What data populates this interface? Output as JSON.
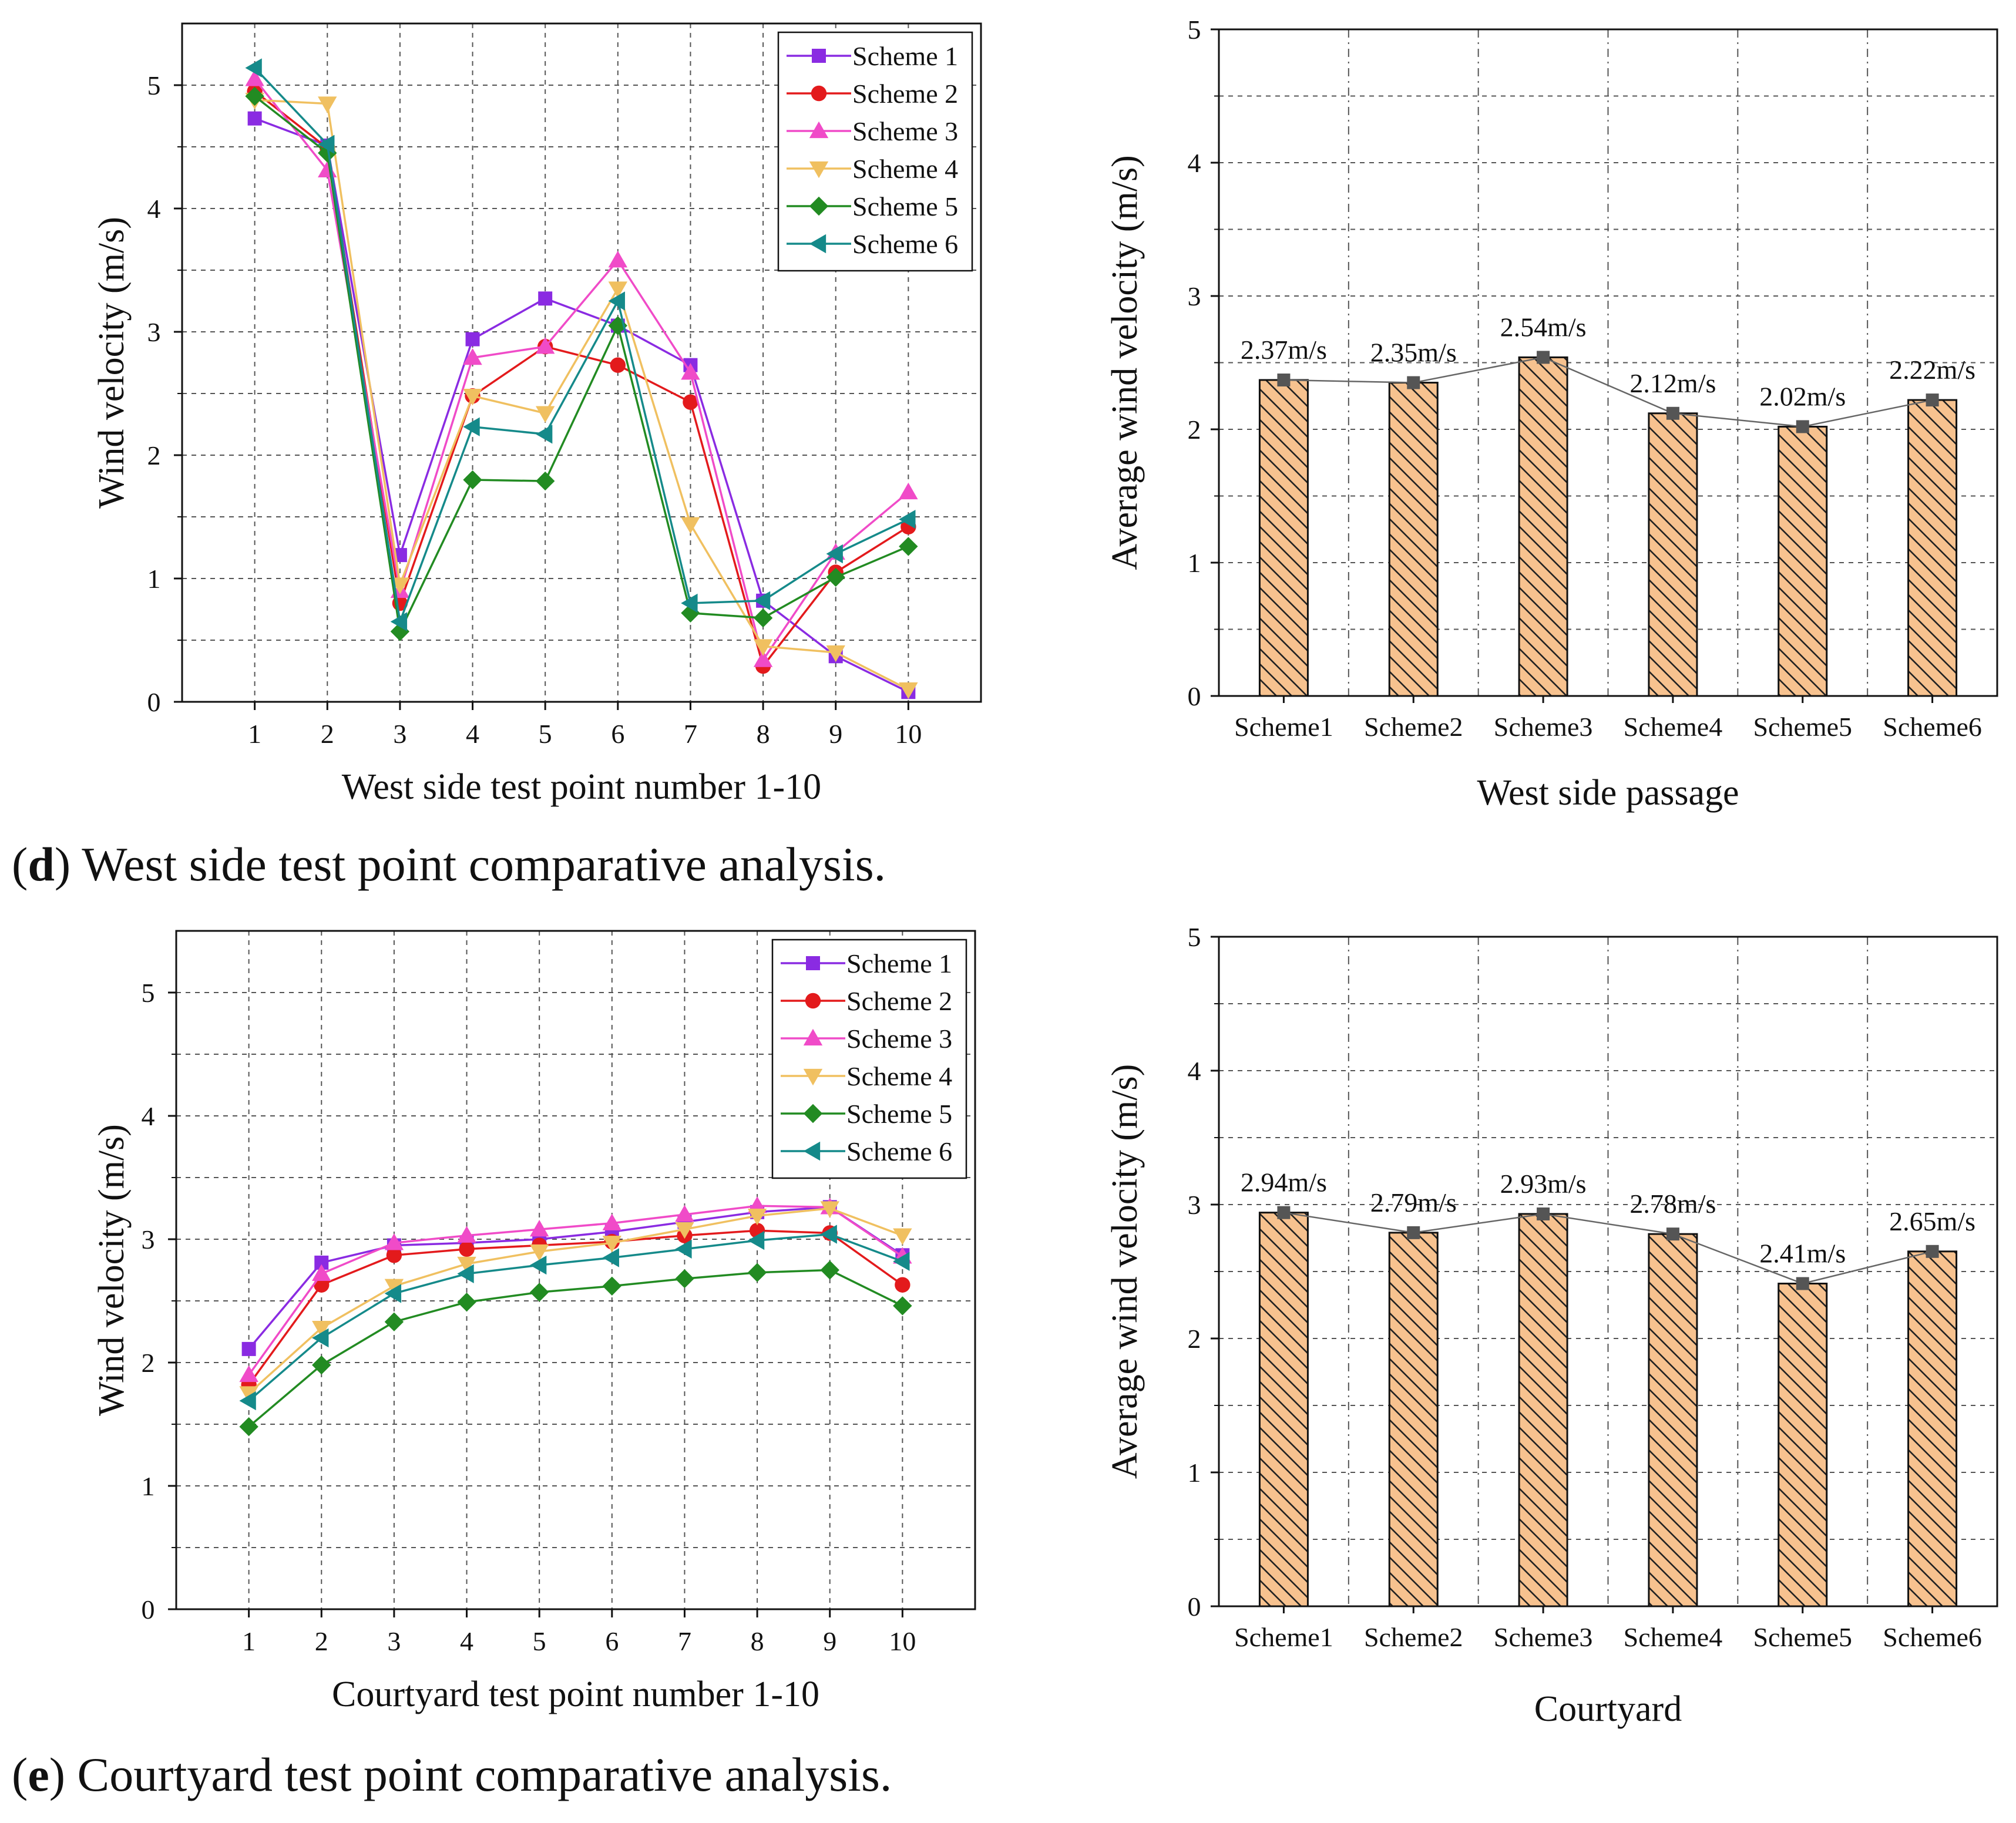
{
  "captions": {
    "d_letter": "d",
    "d_text": " West side test point comparative analysis.",
    "e_letter": "e",
    "e_text": " Courtyard test point comparative analysis."
  },
  "chart_data": [
    {
      "id": "west_line",
      "type": "line",
      "xlabel": "West side test point number 1-10",
      "ylabel": "Wind velocity (m/s)",
      "x": [
        1,
        2,
        3,
        4,
        5,
        6,
        7,
        8,
        9,
        10
      ],
      "xlim": [
        0,
        11
      ],
      "ylim": [
        0,
        5.5
      ],
      "yticks": [
        0,
        1,
        2,
        3,
        4,
        5
      ],
      "grid": true,
      "legend_position": "top-right",
      "series": [
        {
          "name": "Scheme 1",
          "color": "#8a2be2",
          "marker": "square",
          "values": [
            4.73,
            4.51,
            1.19,
            2.94,
            3.27,
            3.05,
            2.73,
            0.82,
            0.37,
            0.08
          ]
        },
        {
          "name": "Scheme 2",
          "color": "#e31a1c",
          "marker": "circle",
          "values": [
            4.95,
            4.49,
            0.8,
            2.48,
            2.88,
            2.73,
            2.43,
            0.29,
            1.05,
            1.42
          ]
        },
        {
          "name": "Scheme 3",
          "color": "#f04bc8",
          "marker": "triangle-up",
          "values": [
            5.05,
            4.31,
            0.9,
            2.79,
            2.88,
            3.58,
            2.67,
            0.34,
            1.21,
            1.7
          ]
        },
        {
          "name": "Scheme 4",
          "color": "#f0c060",
          "marker": "triangle-down",
          "values": [
            4.88,
            4.85,
            0.95,
            2.48,
            2.34,
            3.35,
            1.44,
            0.45,
            0.4,
            0.1
          ]
        },
        {
          "name": "Scheme 5",
          "color": "#228b22",
          "marker": "diamond",
          "values": [
            4.91,
            4.45,
            0.57,
            1.8,
            1.79,
            3.05,
            0.72,
            0.68,
            1.01,
            1.26
          ]
        },
        {
          "name": "Scheme 6",
          "color": "#158a8a",
          "marker": "triangle-left",
          "values": [
            5.14,
            4.52,
            0.65,
            2.23,
            2.17,
            3.25,
            0.8,
            0.82,
            1.2,
            1.48
          ]
        }
      ]
    },
    {
      "id": "west_bar",
      "type": "bar",
      "xlabel": "West side passage",
      "ylabel": "Average wind velocity (m/s)",
      "categories": [
        "Scheme1",
        "Scheme2",
        "Scheme3",
        "Scheme4",
        "Scheme5",
        "Scheme6"
      ],
      "values": [
        2.37,
        2.35,
        2.54,
        2.12,
        2.02,
        2.22
      ],
      "labels": [
        "2.37m/s",
        "2.35m/s",
        "2.54m/s",
        "2.12m/s",
        "2.02m/s",
        "2.22m/s"
      ],
      "ylim": [
        0,
        5
      ],
      "yticks": [
        0,
        1,
        2,
        3,
        4,
        5
      ],
      "grid": true,
      "bar_color": "#f7c28f",
      "pattern": "hatch"
    },
    {
      "id": "courtyard_line",
      "type": "line",
      "xlabel": "Courtyard test point number 1-10",
      "ylabel": "Wind velocity (m/s)",
      "x": [
        1,
        2,
        3,
        4,
        5,
        6,
        7,
        8,
        9,
        10
      ],
      "xlim": [
        0,
        11
      ],
      "ylim": [
        0,
        5.5
      ],
      "yticks": [
        0,
        1,
        2,
        3,
        4,
        5
      ],
      "grid": true,
      "legend_position": "top-right",
      "series": [
        {
          "name": "Scheme 1",
          "color": "#8a2be2",
          "marker": "square",
          "values": [
            2.11,
            2.81,
            2.95,
            2.97,
            3.0,
            3.06,
            3.14,
            3.22,
            3.26,
            2.87
          ]
        },
        {
          "name": "Scheme 2",
          "color": "#e31a1c",
          "marker": "circle",
          "values": [
            1.82,
            2.63,
            2.87,
            2.92,
            2.95,
            2.98,
            3.03,
            3.07,
            3.05,
            2.63
          ]
        },
        {
          "name": "Scheme 3",
          "color": "#f04bc8",
          "marker": "triangle-up",
          "values": [
            1.9,
            2.72,
            2.97,
            3.03,
            3.08,
            3.13,
            3.2,
            3.27,
            3.26,
            2.86
          ]
        },
        {
          "name": "Scheme 4",
          "color": "#f0c060",
          "marker": "triangle-down",
          "values": [
            1.75,
            2.28,
            2.62,
            2.8,
            2.9,
            2.97,
            3.08,
            3.19,
            3.25,
            3.03
          ]
        },
        {
          "name": "Scheme 5",
          "color": "#228b22",
          "marker": "diamond",
          "values": [
            1.48,
            1.98,
            2.33,
            2.49,
            2.57,
            2.62,
            2.68,
            2.73,
            2.75,
            2.46
          ]
        },
        {
          "name": "Scheme 6",
          "color": "#158a8a",
          "marker": "triangle-left",
          "values": [
            1.69,
            2.2,
            2.56,
            2.72,
            2.79,
            2.85,
            2.92,
            2.99,
            3.04,
            2.82
          ]
        }
      ]
    },
    {
      "id": "courtyard_bar",
      "type": "bar",
      "xlabel": "Courtyard",
      "ylabel": "Average wind velocity (m/s)",
      "categories": [
        "Scheme1",
        "Scheme2",
        "Scheme3",
        "Scheme4",
        "Scheme5",
        "Scheme6"
      ],
      "values": [
        2.94,
        2.79,
        2.93,
        2.78,
        2.41,
        2.65
      ],
      "labels": [
        "2.94m/s",
        "2.79m/s",
        "2.93m/s",
        "2.78m/s",
        "2.41m/s",
        "2.65m/s"
      ],
      "ylim": [
        0,
        5
      ],
      "yticks": [
        0,
        1,
        2,
        3,
        4,
        5
      ],
      "grid": true,
      "bar_color": "#f7c28f",
      "pattern": "hatch"
    }
  ]
}
